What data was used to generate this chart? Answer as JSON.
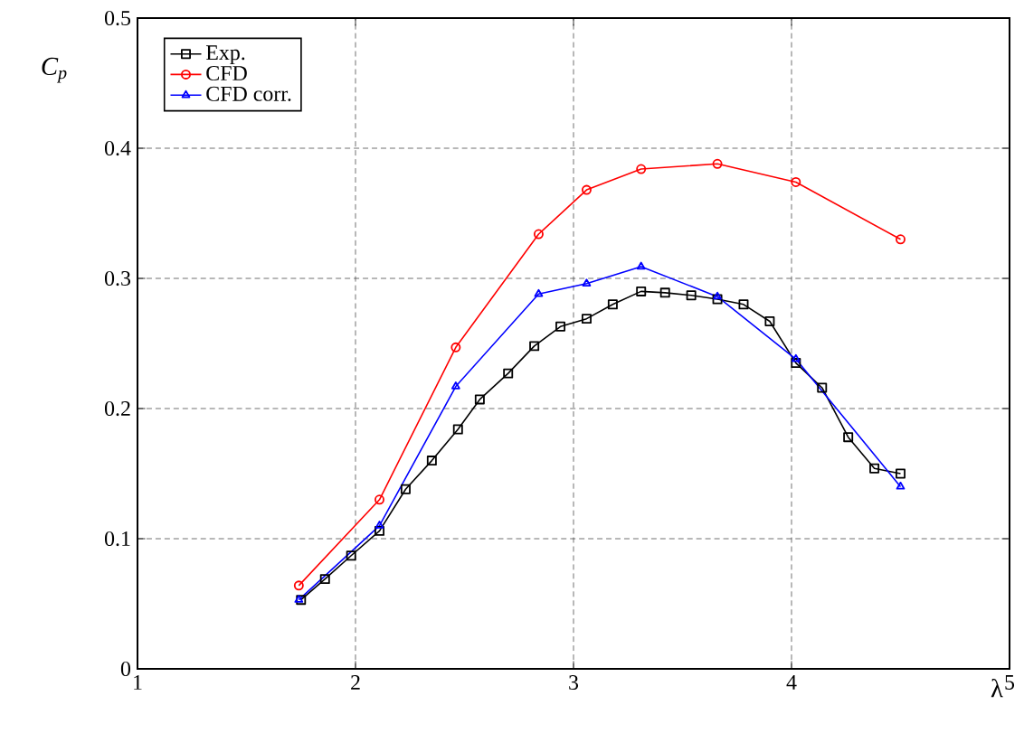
{
  "chart_data": {
    "type": "line",
    "xlabel": "λ",
    "ylabel": "C$_{p}$",
    "xlim": [
      1,
      5
    ],
    "ylim": [
      0,
      0.5
    ],
    "xticks": [
      1,
      2,
      3,
      4,
      5
    ],
    "yticks": [
      0,
      0.1,
      0.2,
      0.3,
      0.4,
      0.5
    ],
    "grid": true,
    "legend": "top left",
    "line_style": "solid",
    "series": [
      {
        "name": "Exp.",
        "color": "#000000",
        "marker": "square",
        "x": [
          1.75,
          1.86,
          1.98,
          2.11,
          2.23,
          2.35,
          2.47,
          2.57,
          2.7,
          2.82,
          2.94,
          3.06,
          3.18,
          3.31,
          3.42,
          3.54,
          3.66,
          3.78,
          3.9,
          4.02,
          4.14,
          4.26,
          4.38,
          4.5
        ],
        "values": [
          0.053,
          0.069,
          0.087,
          0.106,
          0.138,
          0.16,
          0.184,
          0.207,
          0.227,
          0.248,
          0.263,
          0.269,
          0.28,
          0.29,
          0.289,
          0.287,
          0.284,
          0.28,
          0.267,
          0.235,
          0.216,
          0.178,
          0.154,
          0.15
        ]
      },
      {
        "name": "CFD",
        "color": "#ff0000",
        "marker": "circle",
        "x": [
          1.74,
          2.11,
          2.46,
          2.84,
          3.06,
          3.31,
          3.66,
          4.02,
          4.5
        ],
        "values": [
          0.064,
          0.13,
          0.247,
          0.334,
          0.368,
          0.384,
          0.388,
          0.374,
          0.33
        ]
      },
      {
        "name": "CFD corr.",
        "color": "#0000ff",
        "marker": "triangle",
        "x": [
          1.74,
          2.11,
          2.46,
          2.84,
          3.06,
          3.31,
          3.66,
          4.02,
          4.5
        ],
        "values": [
          0.053,
          0.11,
          0.217,
          0.288,
          0.296,
          0.309,
          0.286,
          0.238,
          0.14
        ]
      }
    ]
  }
}
